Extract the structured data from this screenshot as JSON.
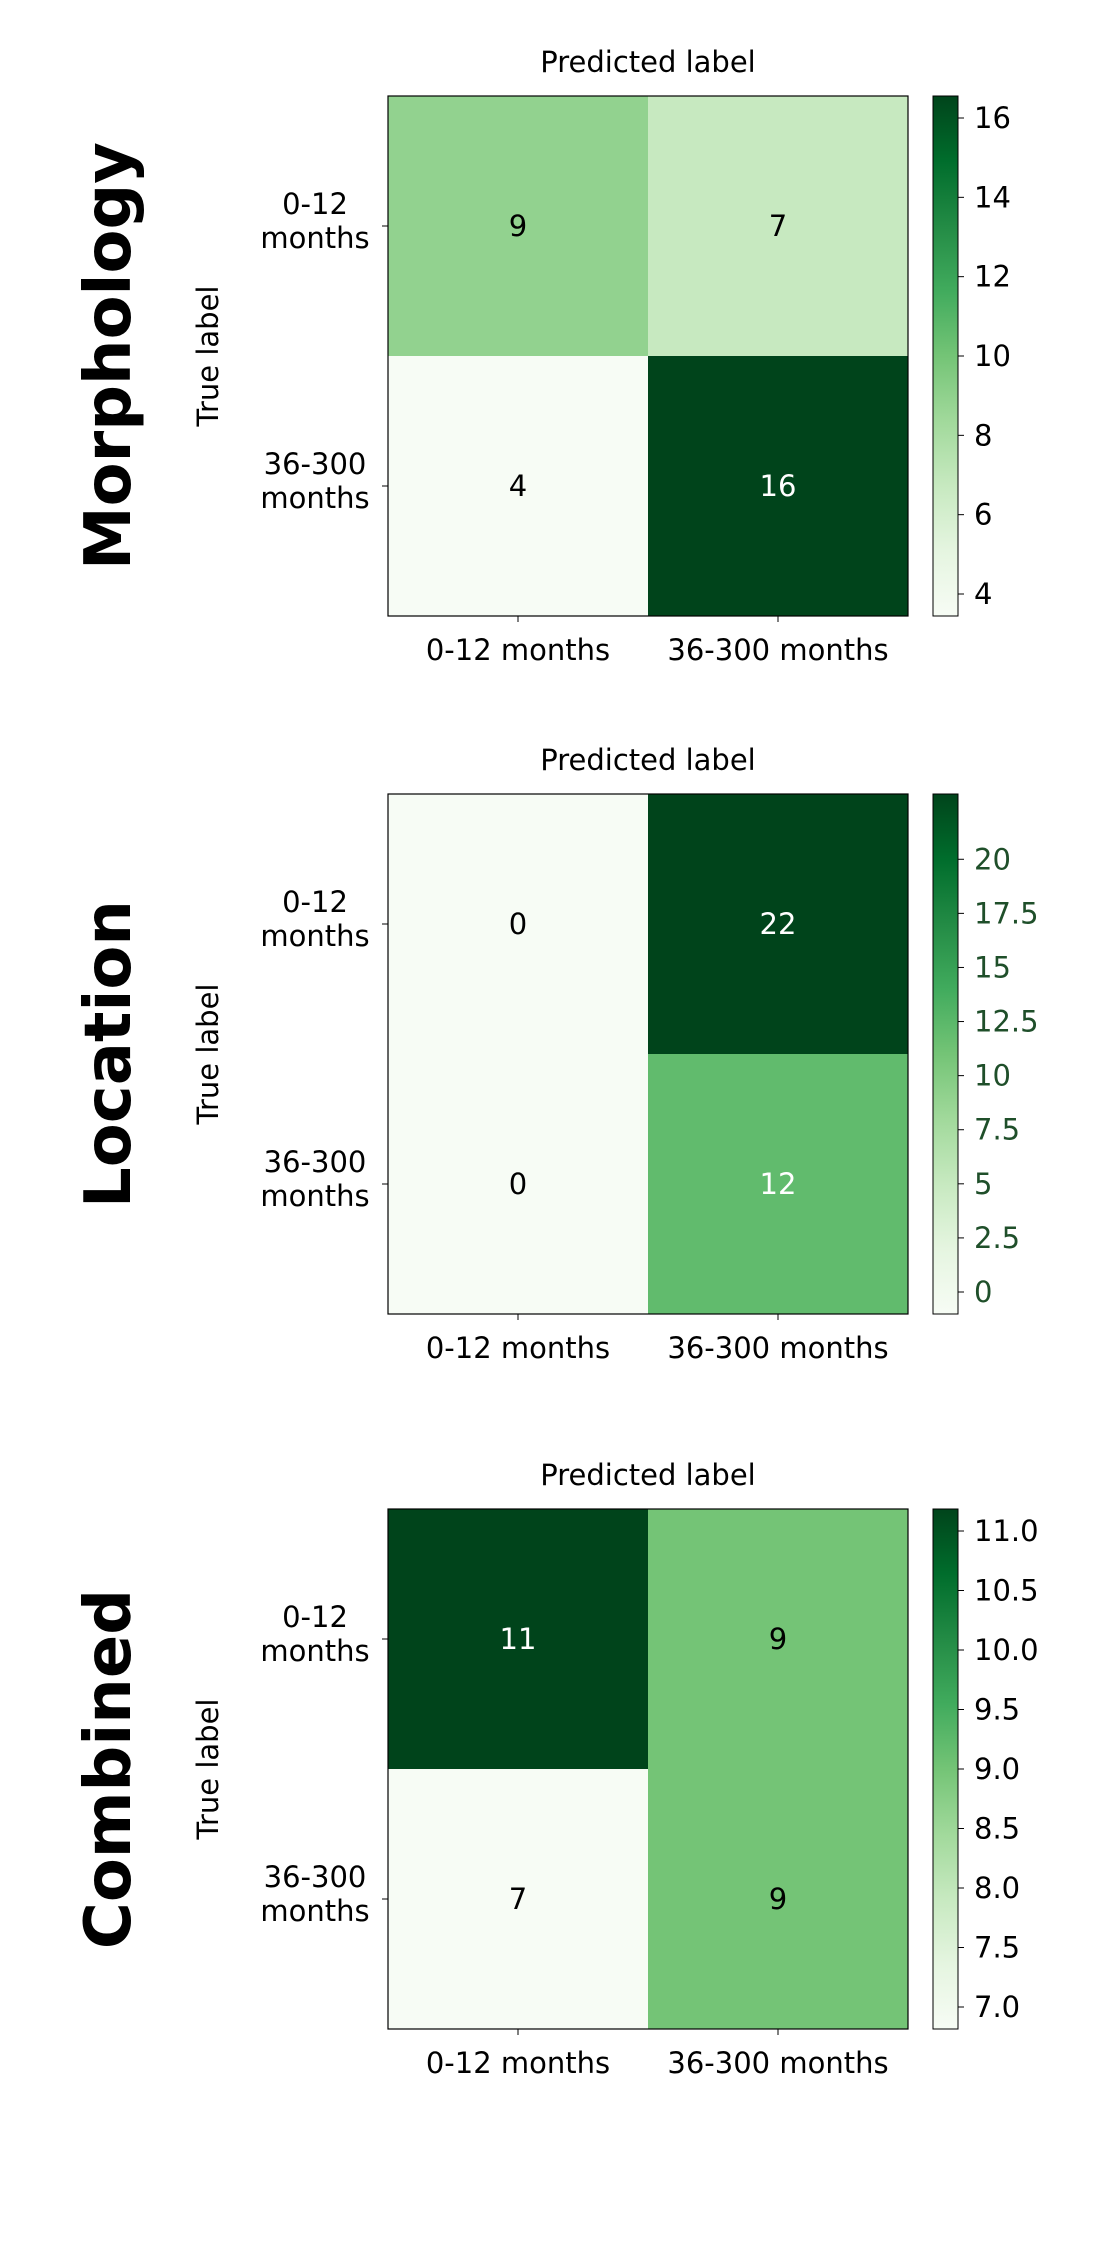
{
  "chart_data": [
    {
      "type": "heatmap",
      "row_title": "Morphology",
      "xlabel": "Predicted label",
      "ylabel": "True label",
      "x_categories": [
        "0-12 months",
        "36-300 months"
      ],
      "y_categories": [
        "0-12 months",
        "36-300 months"
      ],
      "values": [
        [
          9,
          7
        ],
        [
          4,
          16
        ]
      ],
      "colormap": "Greens",
      "color_range": [
        4,
        16
      ],
      "colorbar_ticks": [
        "4",
        "6",
        "8",
        "10",
        "12",
        "14",
        "16"
      ],
      "colorbar_tick_color": "#000000"
    },
    {
      "type": "heatmap",
      "row_title": "Location",
      "xlabel": "Predicted label",
      "ylabel": "True label",
      "x_categories": [
        "0-12 months",
        "36-300 months"
      ],
      "y_categories": [
        "0-12 months",
        "36-300 months"
      ],
      "values": [
        [
          0,
          22
        ],
        [
          0,
          12
        ]
      ],
      "colormap": "Greens",
      "color_range": [
        0,
        22
      ],
      "colorbar_ticks": [
        "0",
        "2.5",
        "5",
        "7.5",
        "10",
        "12.5",
        "15",
        "17.5",
        "20"
      ],
      "colorbar_tick_color": "#1f4f2a"
    },
    {
      "type": "heatmap",
      "row_title": "Combined",
      "xlabel": "Predicted label",
      "ylabel": "True label",
      "x_categories": [
        "0-12 months",
        "36-300 months"
      ],
      "y_categories": [
        "0-12 months",
        "36-300 months"
      ],
      "values": [
        [
          11,
          9
        ],
        [
          7,
          9
        ]
      ],
      "colormap": "Greens",
      "color_range": [
        7,
        11
      ],
      "colorbar_ticks": [
        "7.0",
        "7.5",
        "8.0",
        "8.5",
        "9.0",
        "9.5",
        "10.0",
        "10.5",
        "11.0"
      ],
      "colorbar_tick_color": "#000000"
    }
  ]
}
